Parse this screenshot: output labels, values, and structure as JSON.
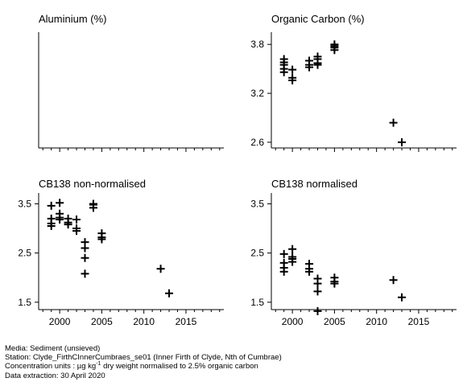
{
  "chart_data": [
    {
      "type": "scatter",
      "title": "Aluminium (%)",
      "x_ticks": [],
      "y_ticks": [],
      "series": []
    },
    {
      "type": "scatter",
      "title": "Organic Carbon (%)",
      "x_ticks": [],
      "y_ticks": [
        "2.6",
        "3.2",
        "3.8"
      ],
      "ylim": [
        2.53,
        3.95
      ],
      "xlim": [
        1997.5,
        2019.5
      ],
      "series": [
        {
          "x": [
            1999,
            1999,
            1999,
            1999,
            1999,
            2000,
            2000,
            2000,
            2002,
            2002,
            2002,
            2003,
            2003,
            2003,
            2003,
            2005,
            2005,
            2005,
            2005,
            2012,
            2013
          ],
          "y": [
            3.5,
            3.55,
            3.58,
            3.62,
            3.46,
            3.49,
            3.39,
            3.36,
            3.55,
            3.52,
            3.6,
            3.57,
            3.55,
            3.62,
            3.65,
            3.73,
            3.78,
            3.8,
            3.76,
            2.84,
            2.6
          ]
        }
      ]
    },
    {
      "type": "scatter",
      "title": "CB138 non-normalised",
      "x_ticks": [
        "2000",
        "2005",
        "2010",
        "2015"
      ],
      "y_ticks": [
        "1.5",
        "2.5",
        "3.5"
      ],
      "ylim": [
        1.35,
        3.72
      ],
      "xlim": [
        1997.5,
        2019.5
      ],
      "series": [
        {
          "x": [
            1999,
            1999,
            1999,
            1999,
            2000,
            2000,
            2000,
            2000,
            2001,
            2001,
            2001,
            2002,
            2002,
            2002,
            2003,
            2003,
            2003,
            2003,
            2004,
            2004,
            2004,
            2005,
            2005,
            2005,
            2012,
            2013
          ],
          "y": [
            3.46,
            3.2,
            3.05,
            3.1,
            3.52,
            3.3,
            3.22,
            3.18,
            3.2,
            3.12,
            3.08,
            3.18,
            3.0,
            2.95,
            2.72,
            2.6,
            2.4,
            2.08,
            3.48,
            3.42,
            3.5,
            2.9,
            2.82,
            2.78,
            2.18,
            1.68
          ]
        }
      ]
    },
    {
      "type": "scatter",
      "title": "CB138 normalised",
      "x_ticks": [
        "2000",
        "2005",
        "2010",
        "2015"
      ],
      "y_ticks": [
        "1.5",
        "2.5",
        "3.5"
      ],
      "ylim": [
        1.35,
        3.72
      ],
      "xlim": [
        1997.5,
        2019.5
      ],
      "series": [
        {
          "x": [
            1999,
            1999,
            1999,
            1999,
            2000,
            2000,
            2000,
            2000,
            2002,
            2002,
            2002,
            2003,
            2003,
            2003,
            2003,
            2005,
            2005,
            2005,
            2012,
            2013
          ],
          "y": [
            2.48,
            2.3,
            2.2,
            2.12,
            2.58,
            2.42,
            2.38,
            2.32,
            2.28,
            2.18,
            2.12,
            1.98,
            1.88,
            1.72,
            1.32,
            2.0,
            1.92,
            1.88,
            1.95,
            1.6
          ]
        }
      ]
    }
  ],
  "footer": {
    "media": "Media: Sediment (unsieved)",
    "station": "Station: Clyde_FirthCInnerCumbraes_se01 (Inner Firth of Clyde, Nth of Cumbrae)",
    "units_prefix": "Concentration units : µg kg",
    "units_sup": "-1",
    "units_suffix": " dry weight normalised to 2.5% organic carbon",
    "extraction": "Data extraction: 30 April 2020"
  }
}
